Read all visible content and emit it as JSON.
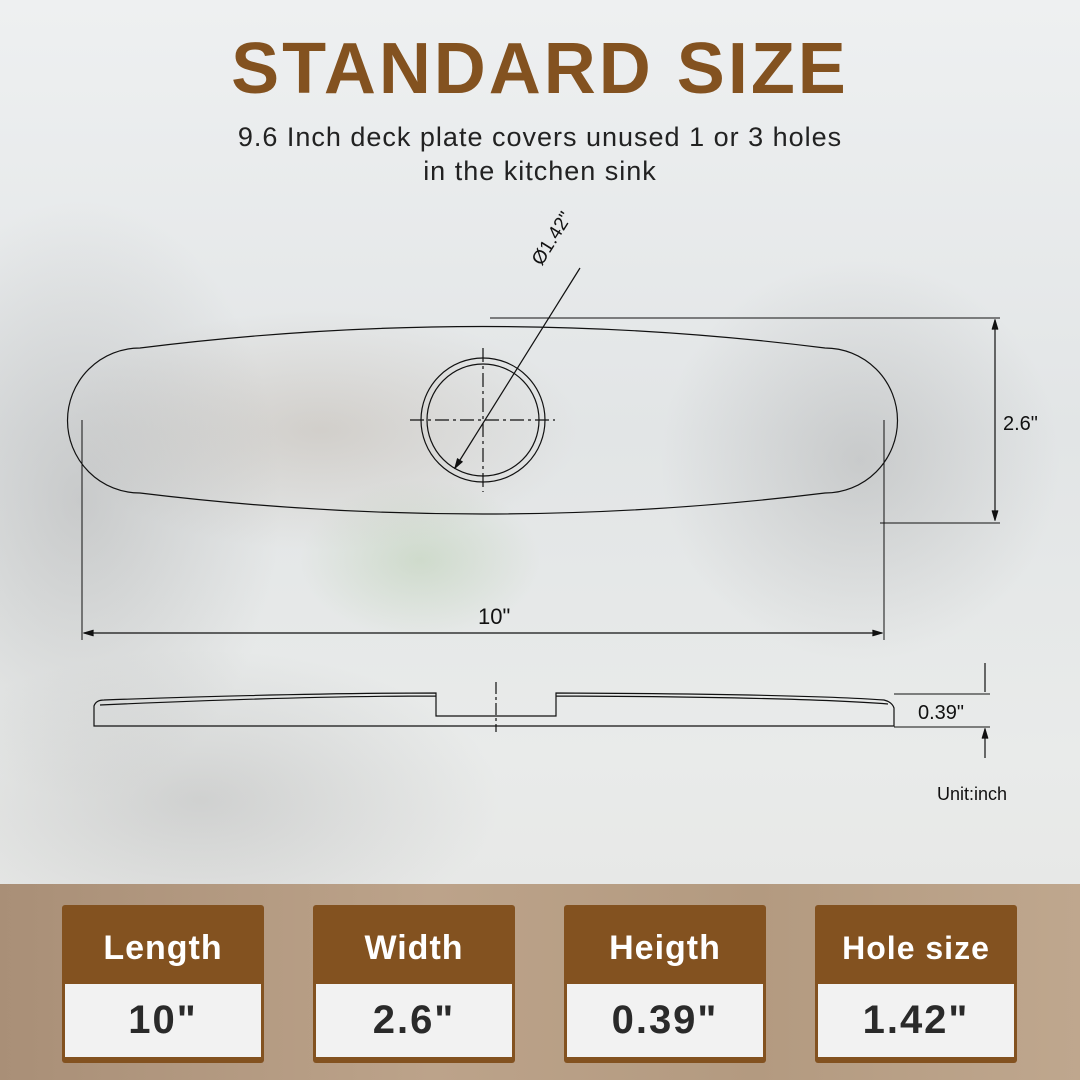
{
  "title": "STANDARD SIZE",
  "subtitle": [
    "9.6 Inch deck plate covers unused 1 or 3 holes",
    "in the kitchen sink"
  ],
  "drawing": {
    "hole_label": "Ø1.42\"",
    "width_label": "2.6\"",
    "length_label": "10\"",
    "height_label": "0.39\"",
    "unit": "Unit:inch"
  },
  "cards": [
    {
      "label": "Length",
      "value": "10\""
    },
    {
      "label": "Width",
      "value": "2.6\""
    },
    {
      "label": "Heigth",
      "value": "0.39\""
    },
    {
      "label": "Hole size",
      "value": "1.42\""
    }
  ],
  "colors": {
    "brand": "#835220",
    "value_bg": "#f2f2f2"
  }
}
